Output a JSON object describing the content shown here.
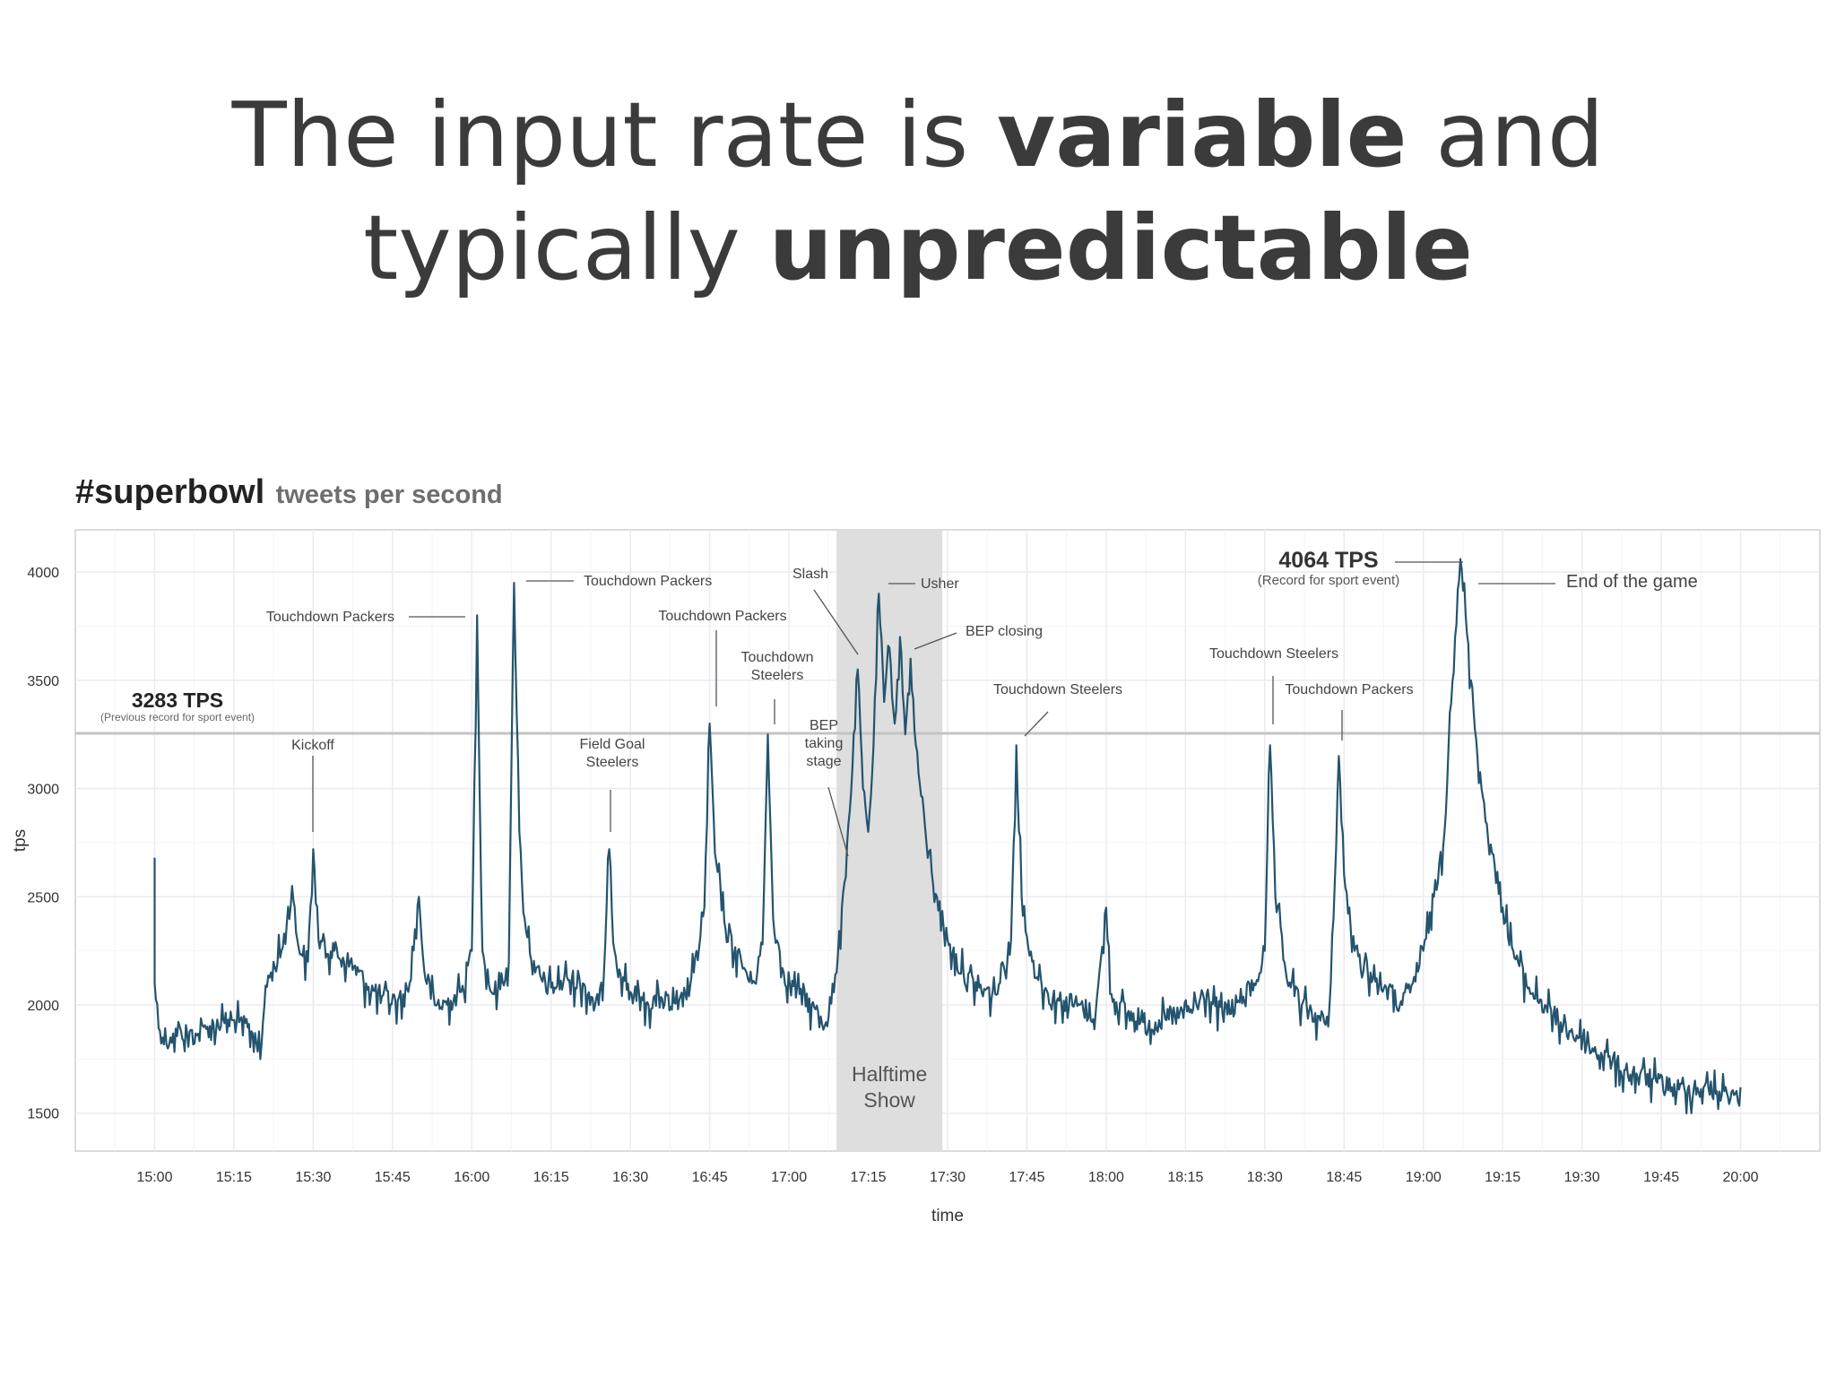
{
  "slide": {
    "title_line1_pre": "The input rate is ",
    "title_line1_bold": "variable",
    "title_line1_post": " and",
    "title_line2_pre": "typically ",
    "title_line2_bold": "unpredictable"
  },
  "chart_data": {
    "type": "line",
    "title": "#superbowl",
    "subtitle": "tweets per second",
    "xlabel": "time",
    "ylabel": "tps",
    "x_ticks": [
      "15:00",
      "15:15",
      "15:30",
      "15:45",
      "16:00",
      "16:15",
      "16:30",
      "16:45",
      "17:00",
      "17:15",
      "17:30",
      "17:45",
      "18:00",
      "18:15",
      "18:30",
      "18:45",
      "19:00",
      "19:15",
      "19:30",
      "19:45",
      "20:00"
    ],
    "y_ticks": [
      1500,
      2000,
      2500,
      3000,
      3500,
      4000
    ],
    "xlim": [
      "14:45",
      "20:15"
    ],
    "ylim": [
      1325,
      4195
    ],
    "grid": true,
    "line_color": "#24546e",
    "shade_color": "#dedede",
    "reference_line": {
      "value": 3255,
      "color": "#c4c4c4"
    },
    "shaded_region": {
      "start": "17:09",
      "end": "17:29",
      "label_line1": "Halftime",
      "label_line2": "Show"
    },
    "records": [
      {
        "value": "3283 TPS",
        "note": "(Previous record for sport event)"
      },
      {
        "value": "4064 TPS",
        "note": "(Record for sport event)"
      }
    ],
    "annotations": [
      {
        "lines": [
          "Kickoff"
        ],
        "time": "15:30",
        "tps": 2800
      },
      {
        "lines": [
          "Touchdown Packers"
        ],
        "time": "16:01",
        "tps": 3810
      },
      {
        "lines": [
          "Touchdown Packers"
        ],
        "time": "16:08",
        "tps": 3960
      },
      {
        "lines": [
          "Field Goal",
          "Steelers"
        ],
        "time": "16:26",
        "tps": 2800
      },
      {
        "lines": [
          "Touchdown Packers"
        ],
        "time": "16:46",
        "tps": 3360
      },
      {
        "lines": [
          "Touchdown",
          "Steelers"
        ],
        "time": "16:57",
        "tps": 3300
      },
      {
        "lines": [
          "BEP",
          "taking",
          "stage"
        ],
        "time": "17:11",
        "tps": 2720
      },
      {
        "lines": [
          "Slash"
        ],
        "time": "17:13",
        "tps": 3550
      },
      {
        "lines": [
          "Usher"
        ],
        "time": "17:17",
        "tps": 3940
      },
      {
        "lines": [
          "BEP closing"
        ],
        "time": "17:23",
        "tps": 3700
      },
      {
        "lines": [
          "Touchdown Steelers"
        ],
        "time": "17:44",
        "tps": 3240
      },
      {
        "lines": [
          "Touchdown Steelers"
        ],
        "time": "18:31",
        "tps": 3290
      },
      {
        "lines": [
          "Touchdown Packers"
        ],
        "time": "18:44",
        "tps": 3220
      },
      {
        "lines": [
          "End of the game"
        ],
        "time": "19:09",
        "tps": 3950
      }
    ],
    "series": [
      {
        "points": [
          [
            "15:00",
            2680
          ],
          [
            "15:00",
            2100
          ],
          [
            "15:01",
            1880
          ],
          [
            "15:03",
            1850
          ],
          [
            "15:05",
            1880
          ],
          [
            "15:08",
            1860
          ],
          [
            "15:10",
            1900
          ],
          [
            "15:13",
            1930
          ],
          [
            "15:16",
            1920
          ],
          [
            "15:19",
            1870
          ],
          [
            "15:20",
            1750
          ],
          [
            "15:21",
            2090
          ],
          [
            "15:22",
            2150
          ],
          [
            "15:24",
            2250
          ],
          [
            "15:26",
            2550
          ],
          [
            "15:27",
            2300
          ],
          [
            "15:29",
            2200
          ],
          [
            "15:30",
            2720
          ],
          [
            "15:31",
            2300
          ],
          [
            "15:34",
            2250
          ],
          [
            "15:37",
            2200
          ],
          [
            "15:40",
            2100
          ],
          [
            "15:43",
            2040
          ],
          [
            "15:46",
            2020
          ],
          [
            "15:48",
            2060
          ],
          [
            "15:50",
            2500
          ],
          [
            "15:51",
            2160
          ],
          [
            "15:53",
            2000
          ],
          [
            "15:56",
            2020
          ],
          [
            "15:58",
            2060
          ],
          [
            "16:00",
            2250
          ],
          [
            "16:01",
            3800
          ],
          [
            "16:02",
            2250
          ],
          [
            "16:04",
            2050
          ],
          [
            "16:07",
            2200
          ],
          [
            "16:08",
            3950
          ],
          [
            "16:09",
            2800
          ],
          [
            "16:10",
            2400
          ],
          [
            "16:12",
            2150
          ],
          [
            "16:15",
            2080
          ],
          [
            "16:18",
            2130
          ],
          [
            "16:21",
            2100
          ],
          [
            "16:24",
            2000
          ],
          [
            "16:25",
            2150
          ],
          [
            "16:26",
            2720
          ],
          [
            "16:27",
            2250
          ],
          [
            "16:30",
            2060
          ],
          [
            "16:33",
            2010
          ],
          [
            "16:36",
            2030
          ],
          [
            "16:39",
            1980
          ],
          [
            "16:42",
            2150
          ],
          [
            "16:44",
            2450
          ],
          [
            "16:45",
            3300
          ],
          [
            "16:46",
            2700
          ],
          [
            "16:48",
            2350
          ],
          [
            "16:51",
            2200
          ],
          [
            "16:53",
            2100
          ],
          [
            "16:55",
            2280
          ],
          [
            "16:56",
            3250
          ],
          [
            "16:57",
            2400
          ],
          [
            "16:59",
            2150
          ],
          [
            "17:02",
            2050
          ],
          [
            "17:05",
            1980
          ],
          [
            "17:07",
            1920
          ],
          [
            "17:09",
            2150
          ],
          [
            "17:10",
            2450
          ],
          [
            "17:11",
            2750
          ],
          [
            "17:12",
            3100
          ],
          [
            "17:13",
            3550
          ],
          [
            "17:14",
            3000
          ],
          [
            "17:15",
            2800
          ],
          [
            "17:16",
            3200
          ],
          [
            "17:17",
            3900
          ],
          [
            "17:18",
            3400
          ],
          [
            "17:19",
            3650
          ],
          [
            "17:20",
            3300
          ],
          [
            "17:21",
            3700
          ],
          [
            "17:22",
            3250
          ],
          [
            "17:23",
            3600
          ],
          [
            "17:24",
            3200
          ],
          [
            "17:26",
            2750
          ],
          [
            "17:28",
            2500
          ],
          [
            "17:30",
            2300
          ],
          [
            "17:33",
            2150
          ],
          [
            "17:36",
            2080
          ],
          [
            "17:39",
            2050
          ],
          [
            "17:42",
            2300
          ],
          [
            "17:43",
            3200
          ],
          [
            "17:44",
            2500
          ],
          [
            "17:46",
            2200
          ],
          [
            "17:49",
            2050
          ],
          [
            "17:52",
            2020
          ],
          [
            "17:55",
            2000
          ],
          [
            "17:58",
            1960
          ],
          [
            "18:00",
            2450
          ],
          [
            "18:01",
            2050
          ],
          [
            "18:04",
            1960
          ],
          [
            "18:07",
            1920
          ],
          [
            "18:10",
            1930
          ],
          [
            "18:13",
            1950
          ],
          [
            "18:16",
            1980
          ],
          [
            "18:19",
            2050
          ],
          [
            "18:22",
            1960
          ],
          [
            "18:25",
            2020
          ],
          [
            "18:28",
            2100
          ],
          [
            "18:30",
            2250
          ],
          [
            "18:31",
            3200
          ],
          [
            "18:32",
            2500
          ],
          [
            "18:34",
            2150
          ],
          [
            "18:37",
            2000
          ],
          [
            "18:40",
            1950
          ],
          [
            "18:42",
            1900
          ],
          [
            "18:43",
            2400
          ],
          [
            "18:44",
            3150
          ],
          [
            "18:45",
            2600
          ],
          [
            "18:47",
            2250
          ],
          [
            "18:50",
            2150
          ],
          [
            "18:53",
            2080
          ],
          [
            "18:56",
            2000
          ],
          [
            "18:58",
            2100
          ],
          [
            "19:00",
            2250
          ],
          [
            "19:02",
            2500
          ],
          [
            "19:04",
            2800
          ],
          [
            "19:05",
            3350
          ],
          [
            "19:06",
            3700
          ],
          [
            "19:07",
            4060
          ],
          [
            "19:08",
            3800
          ],
          [
            "19:09",
            3500
          ],
          [
            "19:11",
            3000
          ],
          [
            "19:13",
            2700
          ],
          [
            "19:15",
            2450
          ],
          [
            "19:17",
            2250
          ],
          [
            "19:20",
            2080
          ],
          [
            "19:23",
            2000
          ],
          [
            "19:26",
            1920
          ],
          [
            "19:29",
            1860
          ],
          [
            "19:32",
            1800
          ],
          [
            "19:35",
            1760
          ],
          [
            "19:38",
            1700
          ],
          [
            "19:41",
            1680
          ],
          [
            "19:44",
            1650
          ],
          [
            "19:47",
            1620
          ],
          [
            "19:50",
            1610
          ],
          [
            "19:53",
            1620
          ],
          [
            "19:56",
            1600
          ],
          [
            "19:59",
            1590
          ],
          [
            "20:00",
            1620
          ]
        ]
      }
    ]
  }
}
